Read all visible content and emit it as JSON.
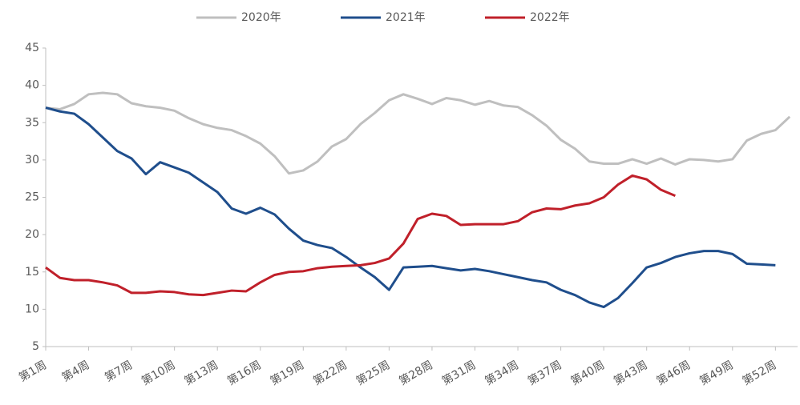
{
  "chart_data": {
    "type": "line",
    "categories": [
      "第1周",
      null,
      null,
      "第4周",
      null,
      null,
      "第7周",
      null,
      null,
      "第10周",
      null,
      null,
      "第13周",
      null,
      null,
      "第16周",
      null,
      null,
      "第19周",
      null,
      null,
      "第22周",
      null,
      null,
      "第25周",
      null,
      null,
      "第28周",
      null,
      null,
      "第31周",
      null,
      null,
      "第34周",
      null,
      null,
      "第37周",
      null,
      null,
      "第40周",
      null,
      null,
      "第43周",
      null,
      null,
      "第46周",
      null,
      null,
      "第49周",
      null,
      null,
      "第52周",
      null
    ],
    "series": [
      {
        "name": "2020年",
        "color": "#bfbfbf",
        "values": [
          37,
          36.8,
          37.5,
          38.8,
          39,
          38.8,
          37.6,
          37.2,
          37,
          36.6,
          35.6,
          34.8,
          34.3,
          34,
          33.2,
          32.2,
          30.5,
          28.2,
          28.6,
          29.8,
          31.8,
          32.8,
          34.8,
          36.3,
          38,
          38.8,
          38.2,
          37.5,
          38.3,
          38,
          37.4,
          37.9,
          37.3,
          37.1,
          36,
          34.6,
          32.7,
          31.5,
          29.8,
          29.5,
          29.5,
          30.1,
          29.5,
          30.2,
          29.4,
          30.1,
          30,
          29.8,
          30.1,
          32.6,
          33.5,
          34,
          35.8
        ]
      },
      {
        "name": "2021年",
        "color": "#1f4e8c",
        "values": [
          37,
          36.5,
          36.2,
          34.8,
          33,
          31.2,
          30.2,
          28.1,
          29.7,
          29,
          28.3,
          27,
          25.7,
          23.5,
          22.8,
          23.6,
          22.7,
          20.8,
          19.2,
          18.6,
          18.2,
          17,
          15.6,
          14.3,
          12.6,
          15.6,
          15.7,
          15.8,
          15.5,
          15.2,
          15.4,
          15.1,
          14.7,
          14.3,
          13.9,
          13.6,
          12.6,
          11.9,
          10.9,
          10.3,
          11.5,
          13.5,
          15.6,
          16.2,
          17,
          17.5,
          17.8,
          17.8,
          17.4,
          16.1,
          16,
          15.9,
          null
        ]
      },
      {
        "name": "2022年",
        "color": "#c0202a",
        "values": [
          15.6,
          14.2,
          13.9,
          13.9,
          13.6,
          13.2,
          12.2,
          12.2,
          12.4,
          12.3,
          12,
          11.9,
          12.2,
          12.5,
          12.4,
          13.6,
          14.6,
          15,
          15.1,
          15.5,
          15.7,
          15.8,
          15.9,
          16.2,
          16.8,
          18.8,
          22.1,
          22.8,
          22.5,
          21.3,
          21.4,
          21.4,
          21.4,
          21.8,
          23,
          23.5,
          23.4,
          23.9,
          24.2,
          25,
          26.7,
          27.9,
          27.4,
          26,
          25.2,
          null,
          null,
          null,
          null,
          null,
          null,
          null,
          null
        ]
      }
    ],
    "ylim": [
      5,
      45
    ],
    "yticks": [
      5,
      10,
      15,
      20,
      25,
      30,
      35,
      40,
      45
    ]
  }
}
